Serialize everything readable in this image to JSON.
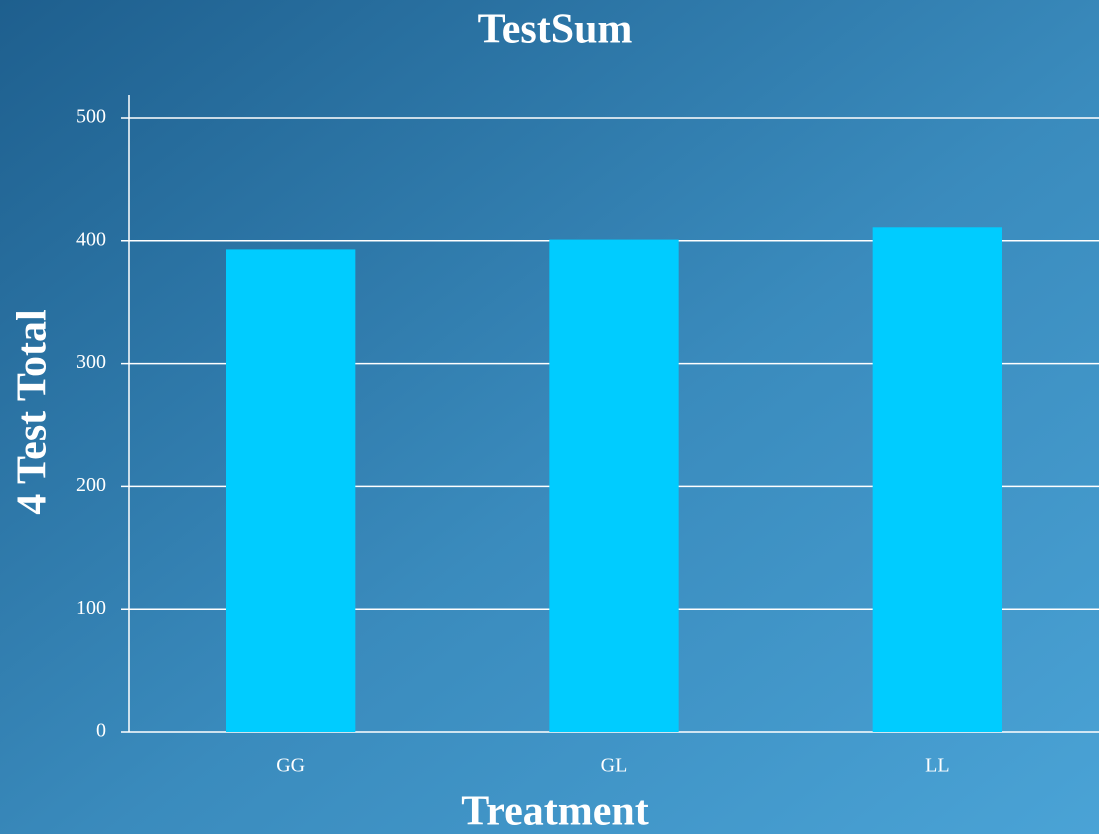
{
  "chart_data": {
    "type": "bar",
    "title": "TestSum",
    "x_label": "Treatment",
    "y_label": "4 Test Total",
    "categories": [
      "GG",
      "GL",
      "LL"
    ],
    "values": [
      393,
      401,
      411
    ],
    "color": "#00ccff",
    "ylim": [
      0,
      500
    ],
    "yticks": [
      0,
      100,
      200,
      300,
      400,
      500
    ],
    "grid": true
  }
}
